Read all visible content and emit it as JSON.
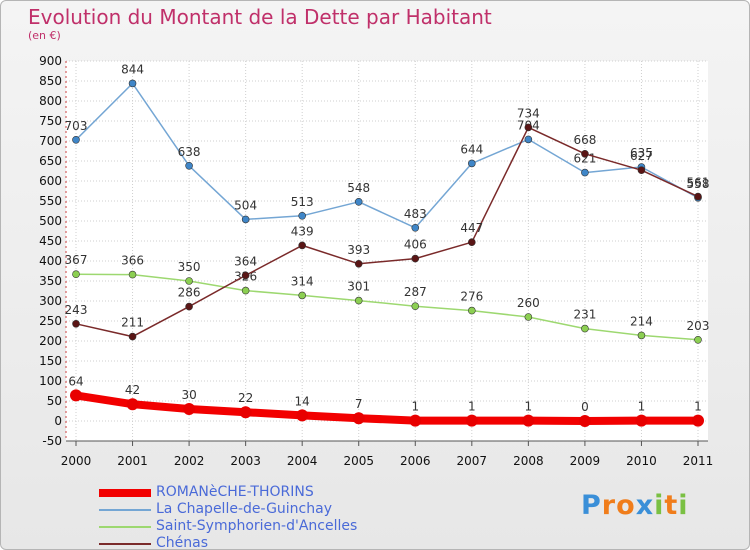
{
  "title": "Evolution du Montant de la Dette par Habitant",
  "subtitle": "(en €)",
  "logo": {
    "letters": [
      "P",
      "r",
      "o",
      "x",
      "i",
      "t",
      "i"
    ],
    "colors": [
      "#3a8fd8",
      "#f07d1b",
      "#f07d1b",
      "#3a8fd8",
      "#7ac043",
      "#f07d1b",
      "#7ac043"
    ]
  },
  "chart_data": {
    "type": "line",
    "x": [
      "2000",
      "2001",
      "2002",
      "2003",
      "2004",
      "2005",
      "2006",
      "2007",
      "2008",
      "2009",
      "2010",
      "2011"
    ],
    "ylim": [
      -50,
      900
    ],
    "yticks": [
      -50,
      0,
      50,
      100,
      150,
      200,
      250,
      300,
      350,
      400,
      450,
      500,
      550,
      600,
      650,
      700,
      750,
      800,
      850,
      900
    ],
    "grid": true,
    "legend_position": "bottom-left",
    "series": [
      {
        "name": "ROMANèCHE-THORINS",
        "color": "#f20000",
        "marker": "#e80000",
        "width": 8,
        "values": [
          64,
          42,
          30,
          22,
          14,
          7,
          1,
          1,
          1,
          0,
          1,
          1
        ],
        "labels": [
          "64",
          "42",
          "30",
          "22",
          "14",
          "7",
          "1",
          "1",
          "1",
          "0",
          "1",
          "1"
        ]
      },
      {
        "name": "La Chapelle-de-Guinchay",
        "color": "#74a6d4",
        "marker": "#3f86c8",
        "width": 1.5,
        "values": [
          703,
          844,
          638,
          504,
          513,
          548,
          483,
          644,
          704,
          621,
          635,
          558
        ],
        "labels": [
          "703",
          "844",
          "638",
          "504",
          "513",
          "548",
          "483",
          "644",
          "704",
          "621",
          "635",
          "558"
        ]
      },
      {
        "name": "Saint-Symphorien-d'Ancelles",
        "color": "#9dd870",
        "marker": "#8ccf52",
        "width": 1.5,
        "values": [
          367,
          366,
          350,
          326,
          314,
          301,
          287,
          276,
          260,
          231,
          214,
          203
        ],
        "labels": [
          "367",
          "366",
          "350",
          "326",
          "314",
          "301",
          "287",
          "276",
          "260",
          "231",
          "214",
          "203"
        ]
      },
      {
        "name": "Chénas",
        "color": "#7a2a2a",
        "marker": "#5a1515",
        "width": 1.5,
        "values": [
          243,
          211,
          286,
          364,
          439,
          393,
          406,
          447,
          734,
          668,
          627,
          561
        ],
        "labels": [
          "243",
          "211",
          "286",
          "364",
          "439",
          "393",
          "406",
          "447",
          "734",
          "668",
          "627",
          "561"
        ]
      }
    ]
  }
}
